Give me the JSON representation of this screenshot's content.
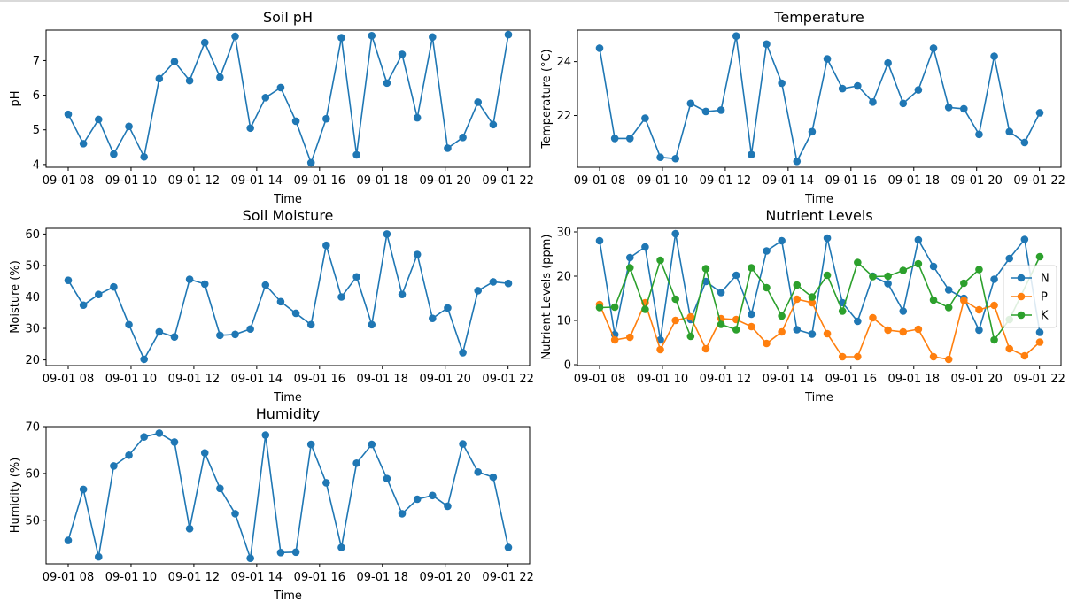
{
  "chart_data": [
    {
      "id": "soil-ph",
      "type": "line",
      "title": "Soil pH",
      "xlabel": "Time",
      "ylabel": "pH",
      "x_tick_labels": [
        "09-01 08",
        "09-01 10",
        "09-01 12",
        "09-01 14",
        "09-01 16",
        "09-01 18",
        "09-01 20",
        "09-01 22"
      ],
      "y_ticks": [
        4,
        5,
        6,
        7
      ],
      "ylim": [
        3.92,
        7.88
      ],
      "series": [
        {
          "color": "#1f77b4",
          "values": [
            5.45,
            4.6,
            5.3,
            4.3,
            5.1,
            4.22,
            6.48,
            6.97,
            6.42,
            7.52,
            6.52,
            7.7,
            5.05,
            5.93,
            6.22,
            5.25,
            4.05,
            5.32,
            7.66,
            4.28,
            7.72,
            6.35,
            7.18,
            5.35,
            7.68,
            4.47,
            4.78,
            5.8,
            5.15,
            7.75
          ]
        }
      ],
      "grid": false
    },
    {
      "id": "temperature",
      "type": "line",
      "title": "Temperature",
      "xlabel": "Time",
      "ylabel": "Temperature (°C)",
      "x_tick_labels": [
        "09-01 08",
        "09-01 10",
        "09-01 12",
        "09-01 14",
        "09-01 16",
        "09-01 18",
        "09-01 20",
        "09-01 22"
      ],
      "y_ticks": [
        22,
        24
      ],
      "ylim": [
        20.08,
        25.17
      ],
      "series": [
        {
          "color": "#1f77b4",
          "values": [
            24.5,
            21.15,
            21.15,
            21.9,
            20.45,
            20.4,
            22.45,
            22.15,
            22.2,
            24.95,
            20.55,
            24.65,
            23.2,
            20.3,
            21.4,
            24.1,
            23.0,
            23.1,
            22.5,
            23.95,
            22.45,
            22.95,
            24.5,
            22.3,
            22.25,
            21.3,
            24.2,
            21.4,
            21.0,
            22.1
          ]
        }
      ],
      "grid": false
    },
    {
      "id": "soil-moisture",
      "type": "line",
      "title": "Soil Moisture",
      "xlabel": "Time",
      "ylabel": "Moisture (%)",
      "x_tick_labels": [
        "09-01 08",
        "09-01 10",
        "09-01 12",
        "09-01 14",
        "09-01 16",
        "09-01 18",
        "09-01 20",
        "09-01 22"
      ],
      "y_ticks": [
        20,
        30,
        40,
        50,
        60
      ],
      "ylim": [
        18.2,
        61.8
      ],
      "series": [
        {
          "color": "#1f77b4",
          "values": [
            45.3,
            37.4,
            40.8,
            43.2,
            31.2,
            20.2,
            28.9,
            27.3,
            45.6,
            44.1,
            27.8,
            28.1,
            29.8,
            43.8,
            38.5,
            34.8,
            31.2,
            56.4,
            40.0,
            46.4,
            31.2,
            60.0,
            40.8,
            53.5,
            33.2,
            36.5,
            22.3,
            42.0,
            44.8,
            44.3
          ]
        }
      ],
      "grid": false
    },
    {
      "id": "nutrient-levels",
      "type": "line",
      "title": "Nutrient Levels",
      "xlabel": "Time",
      "ylabel": "Nutrient Levels (ppm)",
      "x_tick_labels": [
        "09-01 08",
        "09-01 10",
        "09-01 12",
        "09-01 14",
        "09-01 16",
        "09-01 18",
        "09-01 20",
        "09-01 22"
      ],
      "y_ticks": [
        0,
        10,
        20,
        30
      ],
      "ylim": [
        -0.2,
        30.8
      ],
      "legend": "right",
      "series": [
        {
          "name": "N",
          "color": "#1f77b4",
          "values": [
            28.0,
            6.8,
            24.2,
            26.6,
            5.6,
            29.6,
            10.2,
            18.8,
            16.3,
            20.2,
            11.4,
            25.7,
            28.0,
            7.9,
            6.9,
            28.6,
            14.0,
            9.8,
            20.0,
            18.3,
            12.1,
            28.2,
            22.2,
            16.9,
            15.0,
            7.8,
            19.3,
            24.0,
            28.3,
            7.3
          ]
        },
        {
          "name": "P",
          "color": "#ff7f0e",
          "values": [
            13.6,
            5.6,
            6.2,
            14.0,
            3.4,
            10.0,
            10.8,
            3.6,
            10.4,
            10.2,
            8.6,
            4.8,
            7.4,
            14.8,
            14.0,
            7.0,
            1.8,
            1.8,
            10.6,
            7.8,
            7.4,
            8.0,
            1.8,
            1.2,
            14.5,
            12.4,
            13.4,
            3.6,
            2.0,
            5.1
          ]
        },
        {
          "name": "K",
          "color": "#2ca02c",
          "values": [
            12.9,
            13.0,
            21.9,
            12.5,
            23.6,
            14.8,
            6.4,
            21.7,
            9.1,
            7.9,
            21.9,
            17.4,
            11.0,
            18.0,
            15.3,
            20.2,
            12.1,
            23.1,
            19.9,
            20.0,
            21.3,
            22.8,
            14.6,
            12.9,
            18.4,
            21.5,
            5.6,
            10.2,
            null,
            24.4
          ]
        }
      ],
      "grid": false
    },
    {
      "id": "humidity",
      "type": "line",
      "title": "Humidity",
      "xlabel": "Time",
      "ylabel": "Humidity (%)",
      "x_tick_labels": [
        "09-01 08",
        "09-01 10",
        "09-01 12",
        "09-01 14",
        "09-01 16",
        "09-01 18",
        "09-01 20",
        "09-01 22"
      ],
      "y_ticks": [
        50,
        60,
        70
      ],
      "ylim": [
        40.7,
        70.0
      ],
      "series": [
        {
          "color": "#1f77b4",
          "values": [
            45.7,
            56.6,
            42.2,
            61.6,
            63.9,
            67.8,
            68.6,
            66.7,
            48.2,
            64.4,
            56.8,
            51.4,
            41.9,
            68.2,
            43.1,
            43.2,
            66.2,
            58.0,
            44.2,
            62.2,
            66.2,
            58.9,
            51.4,
            54.5,
            55.3,
            53.0,
            66.3,
            60.3,
            59.2,
            44.2
          ]
        }
      ],
      "grid": false
    }
  ]
}
